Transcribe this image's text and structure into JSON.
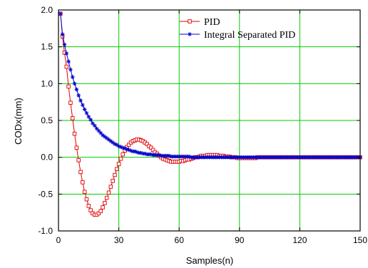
{
  "chart_data": {
    "type": "line",
    "title": "",
    "xlabel": "Samples(n)",
    "ylabel": "CODx(mm)",
    "xlim": [
      0,
      150
    ],
    "ylim": [
      -1.0,
      2.0
    ],
    "x_ticks": [
      0,
      30,
      60,
      90,
      120,
      150
    ],
    "y_ticks": [
      -1.0,
      -0.5,
      0.0,
      0.5,
      1.0,
      1.5,
      2.0
    ],
    "x_tick_labels": [
      "0",
      "30",
      "60",
      "90",
      "120",
      "150"
    ],
    "y_tick_labels": [
      "-1.0",
      "-0.5",
      "0.0",
      "0.5",
      "1.0",
      "1.5",
      "2.0"
    ],
    "grid": true,
    "grid_color": "#00cc00",
    "legend_position": "top-right",
    "series": [
      {
        "name": "PID",
        "color": "#e00000",
        "marker": "open-square",
        "x": [
          1,
          2,
          3,
          4,
          5,
          6,
          7,
          8,
          9,
          10,
          11,
          12,
          13,
          14,
          15,
          16,
          17,
          18,
          19,
          20,
          21,
          22,
          23,
          24,
          25,
          26,
          27,
          28,
          29,
          30,
          31,
          32,
          33,
          34,
          35,
          36,
          37,
          38,
          39,
          40,
          41,
          42,
          43,
          44,
          45,
          46,
          47,
          48,
          49,
          50,
          51,
          52,
          53,
          54,
          55,
          56,
          57,
          58,
          59,
          60,
          61,
          62,
          63,
          64,
          65,
          66,
          67,
          68,
          69,
          70,
          71,
          72,
          73,
          74,
          75,
          76,
          77,
          78,
          79,
          80,
          81,
          82,
          83,
          84,
          85,
          86,
          87,
          88,
          89,
          90,
          91,
          92,
          93,
          94,
          95,
          96,
          97,
          98,
          99,
          100,
          101,
          102,
          103,
          104,
          105,
          106,
          107,
          108,
          109,
          110,
          111,
          112,
          113,
          114,
          115,
          116,
          117,
          118,
          119,
          120,
          121,
          122,
          123,
          124,
          125,
          126,
          127,
          128,
          129,
          130,
          131,
          132,
          133,
          134,
          135,
          136,
          137,
          138,
          139,
          140,
          141,
          142,
          143,
          144,
          145,
          146,
          147,
          148,
          149,
          150
        ],
        "y": [
          1.95,
          1.64,
          1.42,
          1.23,
          0.96,
          0.74,
          0.53,
          0.32,
          0.13,
          -0.04,
          -0.2,
          -0.34,
          -0.47,
          -0.57,
          -0.66,
          -0.72,
          -0.76,
          -0.78,
          -0.78,
          -0.76,
          -0.73,
          -0.68,
          -0.62,
          -0.55,
          -0.48,
          -0.4,
          -0.32,
          -0.24,
          -0.16,
          -0.09,
          -0.02,
          0.04,
          0.09,
          0.14,
          0.17,
          0.2,
          0.22,
          0.23,
          0.24,
          0.24,
          0.23,
          0.22,
          0.2,
          0.18,
          0.15,
          0.13,
          0.1,
          0.07,
          0.05,
          0.02,
          0.0,
          -0.02,
          -0.03,
          -0.04,
          -0.05,
          -0.06,
          -0.06,
          -0.06,
          -0.06,
          -0.06,
          -0.05,
          -0.05,
          -0.04,
          -0.03,
          -0.03,
          -0.02,
          -0.01,
          0.0,
          0.0,
          0.01,
          0.02,
          0.02,
          0.02,
          0.03,
          0.03,
          0.03,
          0.03,
          0.03,
          0.03,
          0.02,
          0.02,
          0.02,
          0.01,
          0.01,
          0.01,
          0.0,
          0.0,
          0.0,
          -0.01,
          -0.01,
          -0.01,
          -0.01,
          -0.01,
          -0.01,
          -0.01,
          -0.01,
          -0.01,
          -0.01,
          0.0,
          0.0,
          0.0,
          0.0,
          0.0,
          0.0,
          0.0,
          0.0,
          0.0,
          0.0,
          0.0,
          0.0,
          0.0,
          0.0,
          0.0,
          0.0,
          0.0,
          0.0,
          0.0,
          0.0,
          0.0,
          0.0,
          0.0,
          0.0,
          0.0,
          0.0,
          0.0,
          0.0,
          0.0,
          0.0,
          0.0,
          0.0,
          0.0,
          0.0,
          0.0,
          0.0,
          0.0,
          0.0,
          0.0,
          0.0,
          0.0,
          0.0,
          0.0,
          0.0,
          0.0,
          0.0,
          0.0,
          0.0,
          0.0,
          0.0,
          0.0,
          0.0
        ]
      },
      {
        "name": "Integral Separated PID",
        "color": "#0000cc",
        "marker": "star",
        "x": [
          1,
          2,
          3,
          4,
          5,
          6,
          7,
          8,
          9,
          10,
          11,
          12,
          13,
          14,
          15,
          16,
          17,
          18,
          19,
          20,
          21,
          22,
          23,
          24,
          25,
          26,
          27,
          28,
          29,
          30,
          31,
          32,
          33,
          34,
          35,
          36,
          37,
          38,
          39,
          40,
          41,
          42,
          43,
          44,
          45,
          46,
          47,
          48,
          49,
          50,
          51,
          52,
          53,
          54,
          55,
          56,
          57,
          58,
          59,
          60,
          61,
          62,
          63,
          64,
          65,
          66,
          67,
          68,
          69,
          70,
          71,
          72,
          73,
          74,
          75,
          76,
          77,
          78,
          79,
          80,
          81,
          82,
          83,
          84,
          85,
          86,
          87,
          88,
          89,
          90,
          91,
          92,
          93,
          94,
          95,
          96,
          97,
          98,
          99,
          100,
          101,
          102,
          103,
          104,
          105,
          106,
          107,
          108,
          109,
          110,
          111,
          112,
          113,
          114,
          115,
          116,
          117,
          118,
          119,
          120,
          121,
          122,
          123,
          124,
          125,
          126,
          127,
          128,
          129,
          130,
          131,
          132,
          133,
          134,
          135,
          136,
          137,
          138,
          139,
          140,
          141,
          142,
          143,
          144,
          145,
          146,
          147,
          148,
          149,
          150
        ],
        "y": [
          1.95,
          1.67,
          1.53,
          1.41,
          1.3,
          1.19,
          1.09,
          1.0,
          0.92,
          0.84,
          0.77,
          0.71,
          0.65,
          0.6,
          0.55,
          0.51,
          0.46,
          0.43,
          0.39,
          0.36,
          0.33,
          0.3,
          0.28,
          0.26,
          0.24,
          0.22,
          0.2,
          0.18,
          0.17,
          0.15,
          0.14,
          0.13,
          0.12,
          0.11,
          0.1,
          0.09,
          0.08,
          0.08,
          0.07,
          0.06,
          0.06,
          0.05,
          0.05,
          0.04,
          0.04,
          0.04,
          0.03,
          0.03,
          0.03,
          0.03,
          0.02,
          0.02,
          0.02,
          0.02,
          0.02,
          0.01,
          0.01,
          0.01,
          0.01,
          0.01,
          0.01,
          0.01,
          0.01,
          0.01,
          0.01,
          0.0,
          0.0,
          0.0,
          0.0,
          0.0,
          0.0,
          0.0,
          0.0,
          0.0,
          0.0,
          0.0,
          0.0,
          0.0,
          0.0,
          0.0,
          0.0,
          0.0,
          0.0,
          0.0,
          0.0,
          0.0,
          0.0,
          0.0,
          0.0,
          0.0,
          0.0,
          0.0,
          0.0,
          0.0,
          0.0,
          0.0,
          0.0,
          0.0,
          0.0,
          0.0,
          0.0,
          0.0,
          0.0,
          0.0,
          0.0,
          0.0,
          0.0,
          0.0,
          0.0,
          0.0,
          0.0,
          0.0,
          0.0,
          0.0,
          0.0,
          0.0,
          0.0,
          0.0,
          0.0,
          0.0,
          0.0,
          0.0,
          0.0,
          0.0,
          0.0,
          0.0,
          0.0,
          0.0,
          0.0,
          0.0,
          0.0,
          0.0,
          0.0,
          0.0,
          0.0,
          0.0,
          0.0,
          0.0,
          0.0,
          0.0,
          0.0,
          0.0,
          0.0,
          0.0,
          0.0,
          0.0,
          0.0,
          0.0,
          0.0,
          0.0
        ]
      }
    ]
  }
}
